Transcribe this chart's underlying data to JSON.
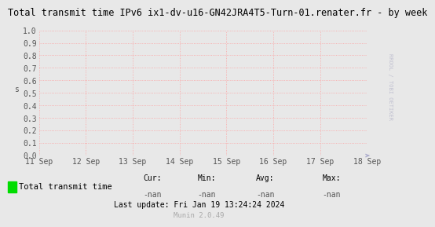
{
  "title": "Total transmit time IPv6 ix1-dv-u16-GN42JRA4T5-Turn-01.renater.fr - by week",
  "ylabel": "s",
  "right_label": "RROOL / TOBI OETIKER",
  "ylim": [
    0.0,
    1.0
  ],
  "yticks": [
    0.0,
    0.1,
    0.2,
    0.3,
    0.4,
    0.5,
    0.6,
    0.7,
    0.8,
    0.9,
    1.0
  ],
  "xtick_labels": [
    "11 Sep",
    "12 Sep",
    "13 Sep",
    "14 Sep",
    "15 Sep",
    "16 Sep",
    "17 Sep",
    "18 Sep"
  ],
  "bg_color": "#e8e8e8",
  "plot_bg_color": "#e8e8e8",
  "grid_color": "#ff9999",
  "title_color": "#000000",
  "legend_label": "Total transmit time",
  "legend_color": "#00dd00",
  "cur_val": "-nan",
  "min_val": "-nan",
  "avg_val": "-nan",
  "max_val": "-nan",
  "last_update": "Last update: Fri Jan 19 13:24:24 2024",
  "munin_version": "Munin 2.0.49",
  "title_fontsize": 8.5,
  "axis_fontsize": 7,
  "legend_fontsize": 7.5,
  "footer_fontsize": 7
}
